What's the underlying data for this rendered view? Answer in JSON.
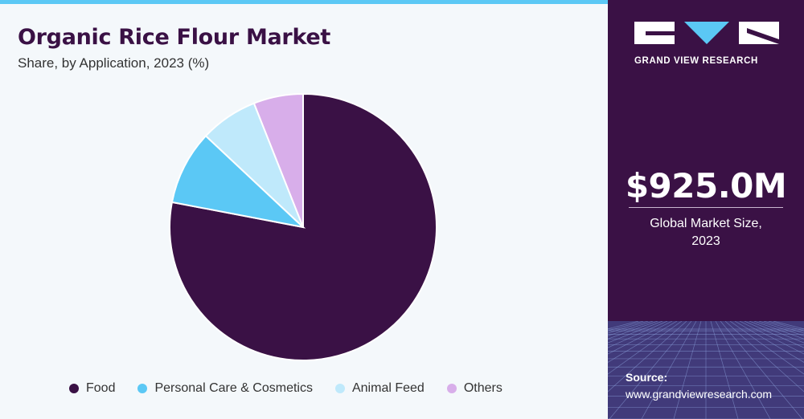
{
  "header": {
    "title": "Organic Rice Flour Market",
    "subtitle": "Share, by Application, 2023 (%)"
  },
  "chart_data": {
    "type": "pie",
    "title": "Organic Rice Flour Market",
    "subtitle": "Share, by Application, 2023 (%)",
    "categories": [
      "Food",
      "Personal Care & Cosmetics",
      "Animal Feed",
      "Others"
    ],
    "values": [
      78,
      9,
      7,
      6
    ],
    "colors": [
      "#3a1145",
      "#5bc8f5",
      "#bfe9fb",
      "#d8aeea"
    ],
    "legend_position": "bottom"
  },
  "legend": {
    "items": [
      "Food",
      "Personal Care & Cosmetics",
      "Animal Feed",
      "Others"
    ]
  },
  "sidebar": {
    "brand": "GRAND VIEW RESEARCH",
    "market_value": "$925.0M",
    "market_label_line1": "Global Market Size,",
    "market_label_line2": "2023",
    "source_label": "Source:",
    "source_url": "www.grandviewresearch.com"
  }
}
